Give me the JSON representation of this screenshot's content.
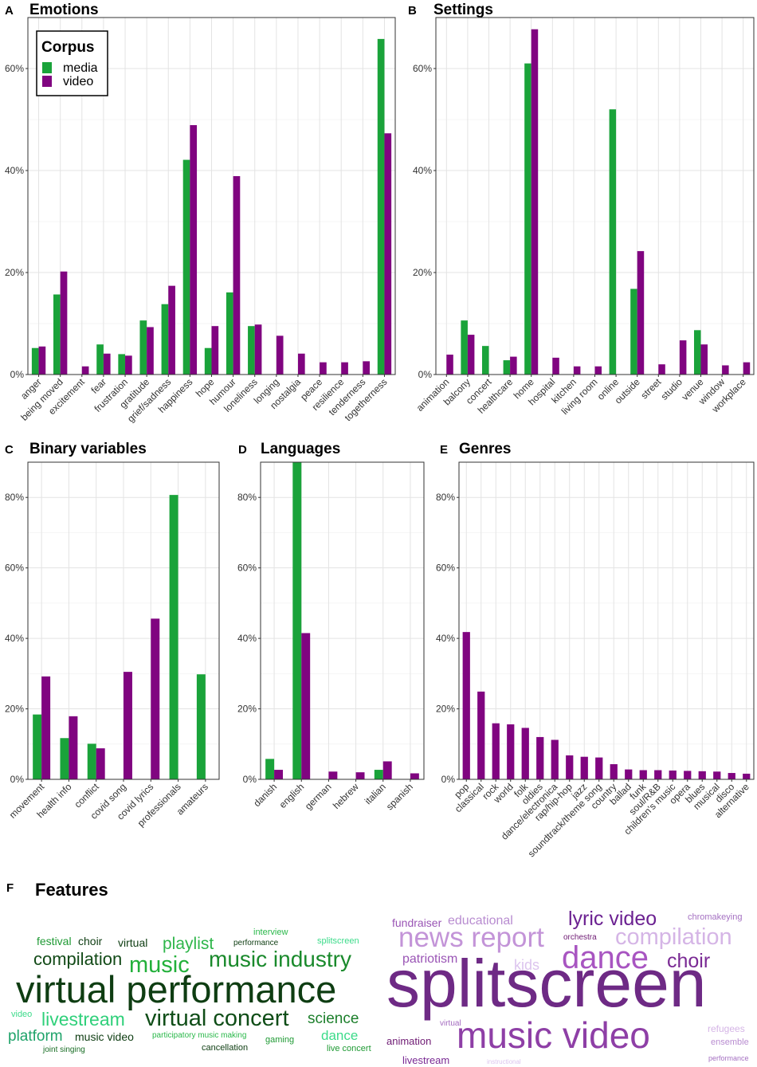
{
  "colors": {
    "media": "#1aa33a",
    "video": "#800480"
  },
  "legend": {
    "title": "Corpus",
    "items": [
      "media",
      "video"
    ]
  },
  "chart_data": [
    {
      "panel": "A",
      "title": "Emotions",
      "type": "bar",
      "ylim": [
        0,
        0.7
      ],
      "yticks": [
        "0%",
        "20%",
        "40%",
        "60%"
      ],
      "ytick_values": [
        0,
        0.2,
        0.4,
        0.6
      ],
      "categories": [
        "anger",
        "being moved",
        "excitement",
        "fear",
        "frustration",
        "gratitude",
        "grief/sadness",
        "happiness",
        "hope",
        "humour",
        "loneliness",
        "longing",
        "nostalgia",
        "peace",
        "resilience",
        "tenderness",
        "togetherness"
      ],
      "series": [
        {
          "name": "media",
          "values": [
            0.052,
            0.157,
            null,
            0.059,
            0.04,
            0.106,
            0.138,
            0.421,
            0.052,
            0.161,
            0.095,
            null,
            null,
            null,
            null,
            null,
            0.658
          ]
        },
        {
          "name": "video",
          "values": [
            0.055,
            0.202,
            0.016,
            0.041,
            0.037,
            0.093,
            0.174,
            0.489,
            0.095,
            0.389,
            0.098,
            0.076,
            0.041,
            0.024,
            0.024,
            0.026,
            0.473
          ]
        }
      ]
    },
    {
      "panel": "B",
      "title": "Settings",
      "type": "bar",
      "ylim": [
        0,
        0.7
      ],
      "yticks": [
        "0%",
        "20%",
        "40%",
        "60%"
      ],
      "ytick_values": [
        0,
        0.2,
        0.4,
        0.6
      ],
      "categories": [
        "animation",
        "balcony",
        "concert",
        "healthcare",
        "home",
        "hospital",
        "kitchen",
        "living room",
        "online",
        "outside",
        "street",
        "studio",
        "venue",
        "window",
        "workplace"
      ],
      "series": [
        {
          "name": "media",
          "values": [
            null,
            0.106,
            0.056,
            0.028,
            0.61,
            null,
            null,
            null,
            0.52,
            0.168,
            null,
            null,
            0.087,
            null,
            null
          ]
        },
        {
          "name": "video",
          "values": [
            0.039,
            0.078,
            null,
            0.035,
            0.677,
            0.033,
            0.016,
            0.016,
            null,
            0.242,
            0.02,
            0.067,
            0.059,
            0.018,
            0.024
          ]
        }
      ]
    },
    {
      "panel": "C",
      "title": "Binary variables",
      "type": "bar",
      "ylim": [
        0,
        0.9
      ],
      "yticks": [
        "0%",
        "20%",
        "40%",
        "60%",
        "80%"
      ],
      "ytick_values": [
        0,
        0.2,
        0.4,
        0.6,
        0.8
      ],
      "categories": [
        "movement",
        "health info",
        "conflict",
        "covid song",
        "covid lyrics",
        "professionals",
        "amateurs"
      ],
      "series": [
        {
          "name": "media",
          "values": [
            0.184,
            0.117,
            0.101,
            null,
            null,
            0.807,
            0.298
          ]
        },
        {
          "name": "video",
          "values": [
            0.292,
            0.179,
            0.088,
            0.305,
            0.456,
            null,
            null
          ]
        }
      ]
    },
    {
      "panel": "D",
      "title": "Languages",
      "type": "bar",
      "ylim": [
        0,
        0.9
      ],
      "yticks": [
        "0%",
        "20%",
        "40%",
        "60%",
        "80%"
      ],
      "ytick_values": [
        0,
        0.2,
        0.4,
        0.6,
        0.8
      ],
      "categories": [
        "danish",
        "english",
        "german",
        "hebrew",
        "italian",
        "spanish"
      ],
      "series": [
        {
          "name": "media",
          "values": [
            0.058,
            0.9,
            null,
            null,
            0.027,
            null
          ]
        },
        {
          "name": "video",
          "values": [
            0.027,
            0.415,
            0.022,
            0.02,
            0.051,
            0.017
          ]
        }
      ]
    },
    {
      "panel": "E",
      "title": "Genres",
      "type": "bar",
      "ylim": [
        0,
        0.9
      ],
      "yticks": [
        "0%",
        "20%",
        "40%",
        "60%",
        "80%"
      ],
      "ytick_values": [
        0,
        0.2,
        0.4,
        0.6,
        0.8
      ],
      "categories": [
        "pop",
        "classical",
        "rock",
        "world",
        "folk",
        "oldies",
        "dance/electronica",
        "rap/hip-hop",
        "jazz",
        "soundtrack/theme song",
        "country",
        "ballad",
        "funk",
        "soul/R&B",
        "children's music",
        "opera",
        "blues",
        "musical",
        "disco",
        "alternative"
      ],
      "series": [
        {
          "name": "video",
          "values": [
            0.418,
            0.249,
            0.159,
            0.156,
            0.146,
            0.12,
            0.112,
            0.068,
            0.064,
            0.062,
            0.043,
            0.028,
            0.026,
            0.026,
            0.025,
            0.024,
            0.023,
            0.022,
            0.018,
            0.016
          ]
        }
      ]
    }
  ],
  "features": {
    "panel": "F",
    "title": "Features",
    "media_words": [
      "virtual performance",
      "music industry",
      "virtual concert",
      "music",
      "compilation",
      "livestream",
      "playlist",
      "science",
      "platform",
      "dance",
      "festival",
      "choir",
      "virtual",
      "music video",
      "interview",
      "splitscreen",
      "performance",
      "video",
      "participatory music making",
      "gaming",
      "cancellation",
      "joint singing",
      "live concert"
    ],
    "video_words": [
      "splitscreen",
      "music video",
      "dance",
      "news report",
      "compilation",
      "lyric video",
      "choir",
      "educational",
      "fundraiser",
      "patriotism",
      "kids",
      "chromakeying",
      "orchestra",
      "animation",
      "livestream",
      "virtual",
      "refugees",
      "ensemble",
      "performance",
      "instructional"
    ]
  }
}
